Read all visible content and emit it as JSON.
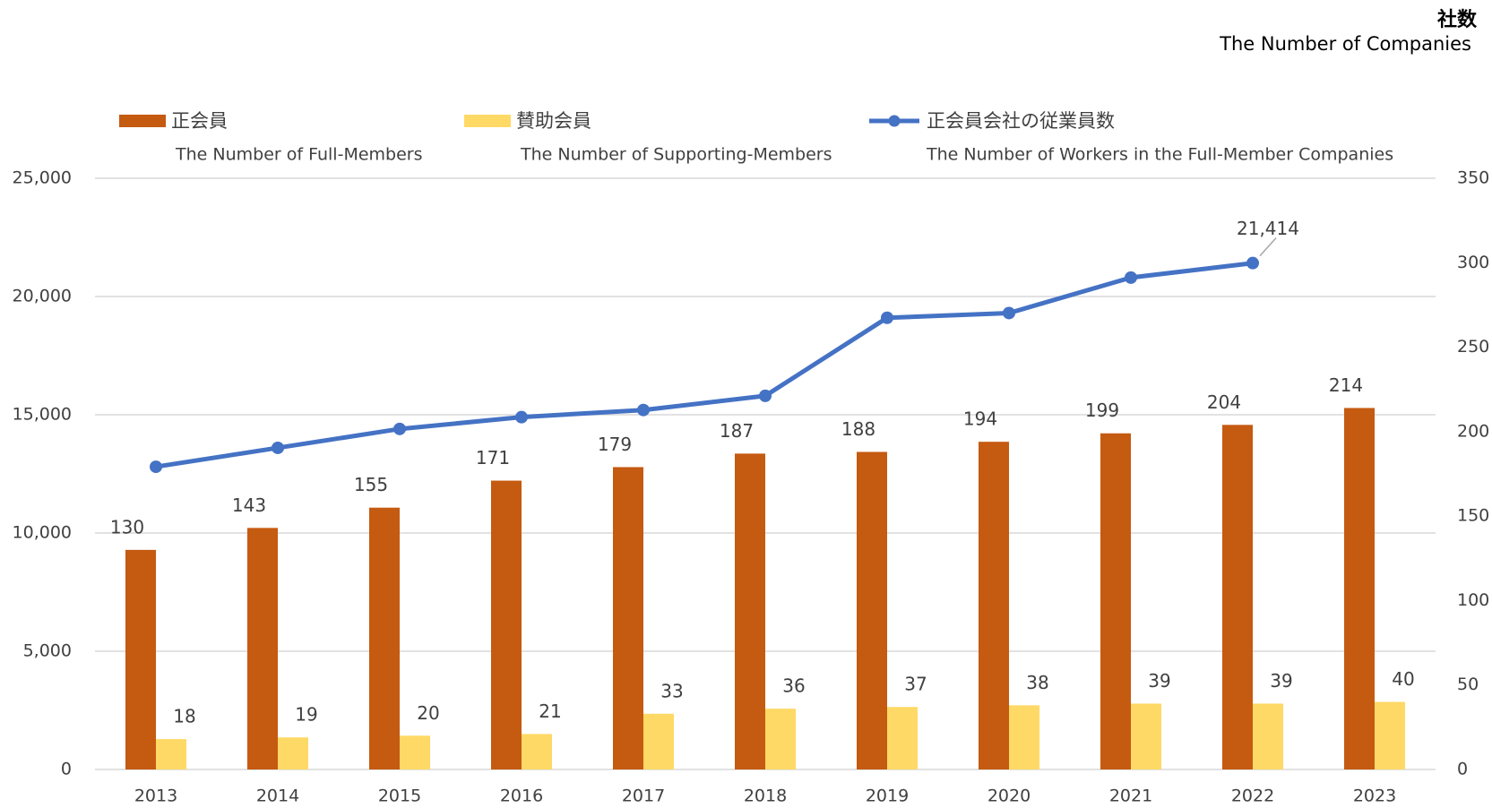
{
  "chart_data": {
    "type": "bar",
    "y2_title": "社数",
    "y2_subtitle": "The Number of Companies",
    "categories": [
      "2013",
      "2014",
      "2015",
      "2016",
      "2017",
      "2018",
      "2019",
      "2020",
      "2021",
      "2022",
      "2023"
    ],
    "series": [
      {
        "name": "正会員",
        "name_en": "The Number of Full-Members",
        "type": "bar",
        "axis": "y2",
        "color": "#c55a11",
        "values": [
          130,
          143,
          155,
          171,
          179,
          187,
          188,
          194,
          199,
          204,
          214
        ]
      },
      {
        "name": "賛助会員",
        "name_en": "The Number of Supporting-Members",
        "type": "bar",
        "axis": "y2",
        "color": "#ffd966",
        "values": [
          18,
          19,
          20,
          21,
          33,
          36,
          37,
          38,
          39,
          39,
          40
        ]
      },
      {
        "name": "正会員会社の従業員数",
        "name_en": "The Number of Workers in the Full-Member Companies",
        "type": "line",
        "axis": "y",
        "color": "#4472c4",
        "values": [
          12800,
          13600,
          14400,
          14900,
          15200,
          15800,
          19100,
          19300,
          20800,
          21414,
          null
        ],
        "value_labels": [
          null,
          null,
          null,
          null,
          null,
          null,
          null,
          null,
          null,
          "21,414",
          null
        ]
      }
    ],
    "ylim": [
      0,
      25000
    ],
    "yticks": [
      0,
      {
        "value": 5000,
        "label": "5,000"
      },
      {
        "value": 10000,
        "label": "10,000"
      },
      {
        "value": 15000,
        "label": "15,000"
      },
      {
        "value": 20000,
        "label": "20,000"
      },
      {
        "value": 25000,
        "label": "25,000"
      }
    ],
    "y2lim": [
      0,
      350
    ],
    "y2ticks": [
      0,
      50,
      100,
      150,
      200,
      250,
      300,
      350
    ],
    "grid": true,
    "legend": "top"
  }
}
